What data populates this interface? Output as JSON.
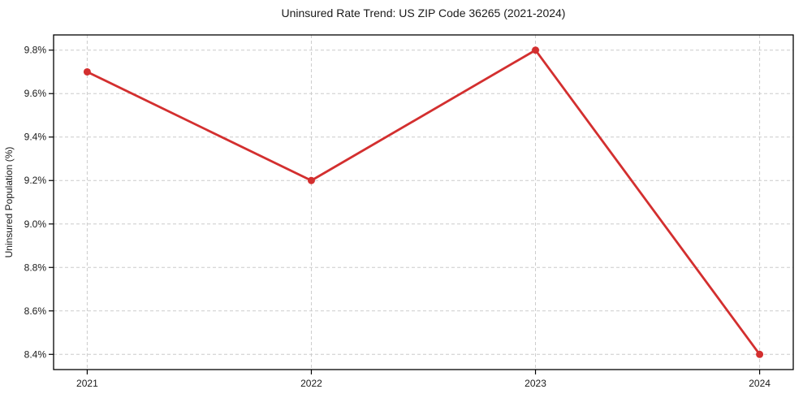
{
  "chart_data": {
    "type": "line",
    "title": "Uninsured Rate Trend: US ZIP Code 36265 (2021-2024)",
    "xlabel": "",
    "ylabel": "Uninsured Population (%)",
    "x": [
      2021,
      2022,
      2023,
      2024
    ],
    "values": [
      9.7,
      9.2,
      9.8,
      8.4
    ],
    "xticks": [
      2021,
      2022,
      2023,
      2024
    ],
    "xtick_labels": [
      "2021",
      "2022",
      "2023",
      "2024"
    ],
    "yticks": [
      8.4,
      8.6,
      8.8,
      9.0,
      9.2,
      9.4,
      9.6,
      9.8
    ],
    "ytick_labels": [
      "8.4%",
      "8.6%",
      "8.8%",
      "9.0%",
      "9.2%",
      "9.4%",
      "9.6%",
      "9.8%"
    ],
    "xlim": [
      2020.85,
      2024.15
    ],
    "ylim": [
      8.33,
      9.87
    ],
    "grid": true,
    "grid_style": "dashed",
    "legend": false,
    "colors": {
      "line": "#d32f2f",
      "marker": "#d32f2f",
      "grid": "#cccccc",
      "axis_border": "#000000",
      "background": "#ffffff",
      "text": "#1a1a1a"
    }
  }
}
